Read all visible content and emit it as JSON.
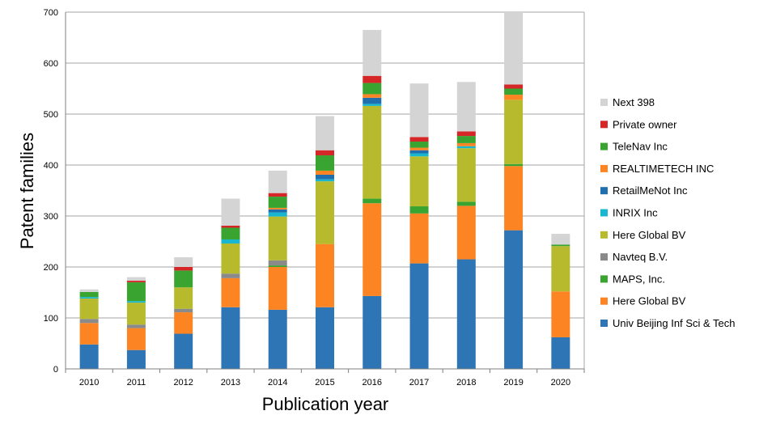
{
  "chart_data": {
    "type": "bar",
    "stacked": true,
    "title": "",
    "xlabel": "Publication year",
    "ylabel": "Patent families",
    "ylim": [
      0,
      700
    ],
    "yticks": [
      0,
      100,
      200,
      300,
      400,
      500,
      600,
      700
    ],
    "grid": "horizontal",
    "legend_position": "right",
    "categories": [
      "2010",
      "2011",
      "2012",
      "2013",
      "2014",
      "2015",
      "2016",
      "2017",
      "2018",
      "2019",
      "2020"
    ],
    "series": [
      {
        "name": "Univ Beijing Inf Sci & Tech",
        "color": "#2e75b6",
        "values": [
          48,
          37,
          69,
          121,
          116,
          121,
          143,
          207,
          215,
          272,
          62
        ]
      },
      {
        "name": "Here Global BV",
        "color": "#fd8423",
        "values": [
          42,
          43,
          42,
          57,
          84,
          124,
          182,
          98,
          105,
          126,
          90
        ]
      },
      {
        "name": "MAPS, Inc.",
        "color": "#3aa431",
        "values": [
          0,
          0,
          0,
          0,
          3,
          0,
          9,
          14,
          8,
          4,
          0
        ]
      },
      {
        "name": "Navteq B.V.",
        "color": "#8a8a8a",
        "values": [
          8,
          7,
          7,
          9,
          10,
          0,
          0,
          0,
          0,
          0,
          0
        ]
      },
      {
        "name": "Here Global BV",
        "color": "#b7ba2c",
        "values": [
          40,
          43,
          42,
          59,
          86,
          123,
          182,
          98,
          105,
          126,
          89
        ]
      },
      {
        "name": "INRIX Inc",
        "color": "#19b7cf",
        "values": [
          3,
          3,
          0,
          8,
          8,
          4,
          4,
          6,
          4,
          0,
          0
        ]
      },
      {
        "name": "RetailMeNot Inc",
        "color": "#1f6fae",
        "values": [
          0,
          0,
          0,
          0,
          6,
          9,
          12,
          6,
          0,
          0,
          0
        ]
      },
      {
        "name": "REALTIMETECH INC",
        "color": "#fd8423",
        "values": [
          0,
          0,
          0,
          0,
          3,
          8,
          7,
          5,
          6,
          10,
          0
        ]
      },
      {
        "name": "TeleNav Inc",
        "color": "#3aa431",
        "values": [
          10,
          37,
          33,
          23,
          22,
          30,
          22,
          12,
          14,
          12,
          3
        ]
      },
      {
        "name": "Private owner",
        "color": "#d62728",
        "values": [
          0,
          3,
          7,
          4,
          7,
          10,
          14,
          9,
          9,
          8,
          0
        ]
      },
      {
        "name": "Next 398",
        "color": "#d4d4d4",
        "values": [
          5,
          7,
          19,
          53,
          44,
          67,
          90,
          105,
          97,
          142,
          21
        ]
      }
    ]
  }
}
